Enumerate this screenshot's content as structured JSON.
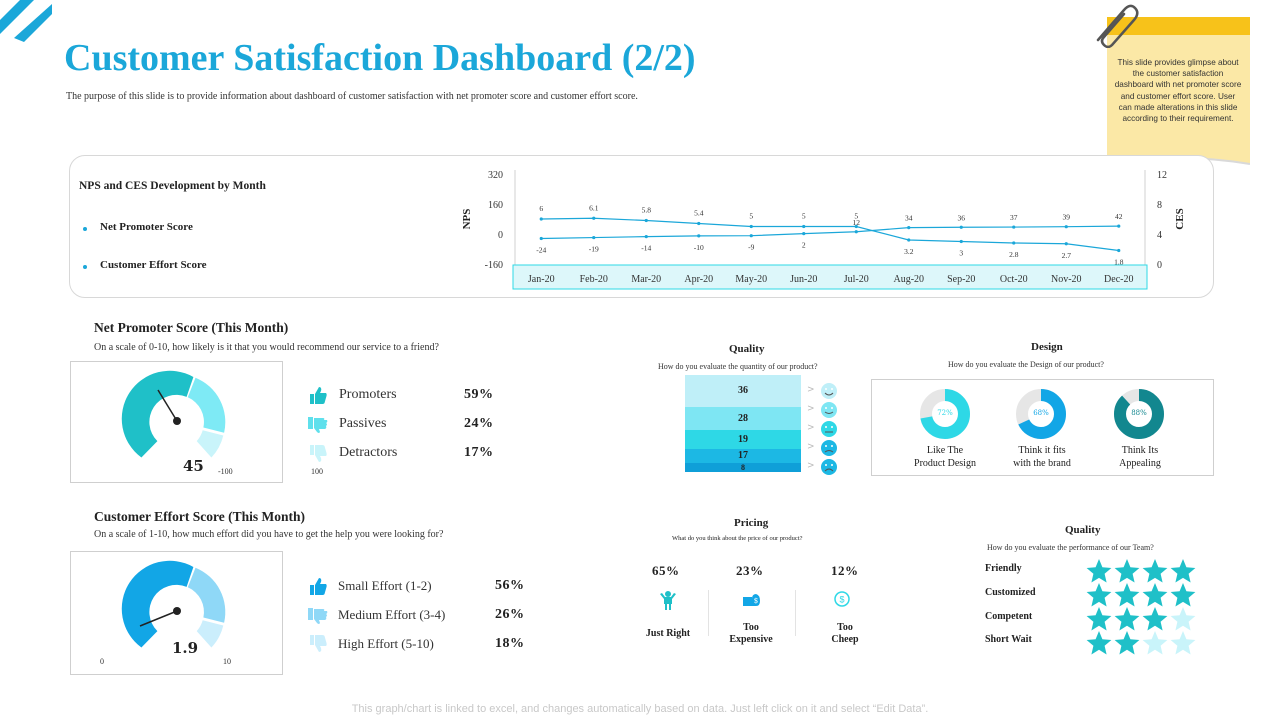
{
  "header": {
    "title": "Customer Satisfaction Dashboard (2/2)",
    "subtitle": "The purpose of this slide is to provide information about dashboard of customer satisfaction with net promoter score and customer effort score."
  },
  "note": {
    "text": "This slide provides glimpse about the customer satisfaction dashboard with net promoter score and customer effort score. User can made alterations in this slide according to their requirement."
  },
  "colors": {
    "title": "#1BA7D9",
    "teal": "#1FC0C8",
    "cyan": "#2ED8E6",
    "blue": "#12A6E6",
    "light": "#BFEFF8",
    "note_body": "#FBE8A6",
    "note_top": "#F7C21A"
  },
  "chart_data": {
    "type": "line",
    "title": "NPS and CES Development  by Month",
    "categories": [
      "Jan-20",
      "Feb-20",
      "Mar-20",
      "Apr-20",
      "May-20",
      "Jun-20",
      "Jul-20",
      "Aug-20",
      "Sep-20",
      "Oct-20",
      "Nov-20",
      "Dec-20"
    ],
    "series": [
      {
        "name": "Net Promoter Score",
        "axis": "left",
        "values": [
          -24,
          -19,
          -14,
          -10,
          -9,
          2,
          12,
          34,
          36,
          37,
          39,
          42
        ]
      },
      {
        "name": "Customer Effort Score",
        "axis": "right",
        "values": [
          6,
          6.1,
          5.8,
          5.4,
          5,
          5,
          5,
          3.2,
          3,
          2.8,
          2.7,
          1.8
        ]
      }
    ],
    "ylabel": "NPS",
    "y2label": "CES",
    "yticks": [
      "320",
      "160",
      "0",
      "-160"
    ],
    "y2ticks": [
      "12",
      "8",
      "4",
      "0"
    ],
    "ylim": [
      -160,
      320
    ],
    "y2lim": [
      0,
      12
    ],
    "legend": "left"
  },
  "nps": {
    "title": "Net Promoter Score (This Month)",
    "question": "On a scale of 0-10, how likely is it that you would recommend our service to a friend?",
    "value": "45",
    "min_label": "-100",
    "max_label": "100",
    "items": [
      {
        "label": "Promoters",
        "pct": "59%"
      },
      {
        "label": "Passives",
        "pct": "24%"
      },
      {
        "label": "Detractors",
        "pct": "17%"
      }
    ]
  },
  "ces": {
    "title": "Customer Effort Score (This Month)",
    "question": "On a scale of 1-10, how much effort did you have to get the help you were looking for?",
    "value": "1.9",
    "min_label": "0",
    "max_label": "10",
    "items": [
      {
        "label": "Small Effort (1-2)",
        "pct": "56%"
      },
      {
        "label": "Medium Effort (3-4)",
        "pct": "26%"
      },
      {
        "label": "High Effort (5-10)",
        "pct": "18%"
      }
    ]
  },
  "quality": {
    "title": "Quality",
    "question": "How do you evaluate the quantity of our product?",
    "bars": [
      "36",
      "28",
      "19",
      "17",
      "8"
    ]
  },
  "design": {
    "title": "Design",
    "question": "How do you evaluate the Design of our product?",
    "items": [
      {
        "pct": "72%",
        "label1": "Like The",
        "label2": "Product Design",
        "value": 72
      },
      {
        "pct": "68%",
        "label1": "Think it fits",
        "label2": "with the brand",
        "value": 68
      },
      {
        "pct": "88%",
        "label1": "Think Its",
        "label2": "Appealing",
        "value": 88
      }
    ]
  },
  "pricing": {
    "title": "Pricing",
    "question": "What do you think about the price of our product?",
    "items": [
      {
        "pct": "65%",
        "label1": "Just Right",
        "label2": ""
      },
      {
        "pct": "23%",
        "label1": "Too",
        "label2": "Expensive"
      },
      {
        "pct": "12%",
        "label1": "Too",
        "label2": "Cheep"
      }
    ]
  },
  "team_quality": {
    "title": "Quality",
    "question": "How do you evaluate the performance of our Team?",
    "rows": [
      {
        "label": "Friendly",
        "filled": 4
      },
      {
        "label": "Customized",
        "filled": 4
      },
      {
        "label": "Competent",
        "filled": 3
      },
      {
        "label": "Short Wait",
        "filled": 2
      }
    ]
  },
  "footer": {
    "text": "This graph/chart is linked to excel, and changes automatically based on data. Just left click on it and select “Edit Data”."
  }
}
